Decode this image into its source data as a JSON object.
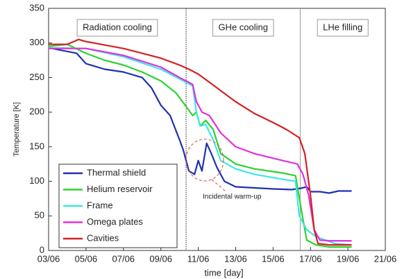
{
  "chart_data": {
    "type": "line",
    "xlabel": "time [day]",
    "ylabel": "Temperature [K]",
    "xlim": [
      3,
      21
    ],
    "xticks": [
      {
        "value": 3,
        "label": "03/06"
      },
      {
        "value": 5,
        "label": "05/06"
      },
      {
        "value": 7,
        "label": "07/06"
      },
      {
        "value": 9,
        "label": "09/06"
      },
      {
        "value": 11,
        "label": "11/06"
      },
      {
        "value": 13,
        "label": "13/06"
      },
      {
        "value": 15,
        "label": "15/06"
      },
      {
        "value": 17,
        "label": "17/06"
      },
      {
        "value": 19,
        "label": "19/06"
      },
      {
        "value": 21,
        "label": "21/06"
      }
    ],
    "ylim": [
      0,
      350
    ],
    "yticks": [
      0,
      50,
      100,
      150,
      200,
      250,
      300,
      350
    ],
    "phases": [
      "Radiation cooling",
      "GHe cooling",
      "LHe filling"
    ],
    "phase_boundaries": [
      10.35,
      16.45
    ],
    "annotation": "Incidental warm-up",
    "legend_position": "lower left",
    "series": [
      {
        "name": "Thermal shield",
        "color": "#1f2fb4",
        "x": [
          3,
          4.5,
          5,
          6,
          7,
          8,
          8.5,
          9,
          9.5,
          10,
          10.2,
          10.5,
          10.8,
          11,
          11.2,
          11.45,
          11.7,
          12,
          12.4,
          13,
          15,
          16,
          16.5,
          16.8,
          17,
          17.5,
          18,
          18.5,
          19.2
        ],
        "values": [
          293,
          285,
          270,
          262,
          258,
          250,
          235,
          210,
          195,
          160,
          145,
          115,
          110,
          130,
          115,
          155,
          140,
          120,
          100,
          92,
          89,
          88,
          90,
          92,
          85,
          85,
          83,
          86,
          86
        ]
      },
      {
        "name": "Helium reservoir",
        "color": "#2ed12e",
        "x": [
          3,
          4,
          5,
          6,
          7,
          8,
          9,
          9.8,
          10.3,
          10.7,
          10.9,
          11.1,
          11.4,
          11.8,
          12.2,
          13,
          14,
          15.5,
          16.2,
          16.5,
          16.8,
          17.3,
          18,
          19.2
        ],
        "values": [
          295,
          298,
          285,
          275,
          268,
          258,
          245,
          228,
          210,
          195,
          200,
          180,
          188,
          175,
          140,
          125,
          118,
          112,
          108,
          60,
          15,
          8,
          5,
          5
        ]
      },
      {
        "name": "Frame",
        "color": "#3ee6e6",
        "x": [
          3,
          5,
          7,
          9,
          10,
          10.7,
          10.9,
          11.1,
          11.4,
          11.8,
          12.2,
          13,
          14,
          15.5,
          16.2,
          16.4,
          16.8,
          17.3,
          17.8,
          18.3,
          19.2
        ],
        "values": [
          293,
          292,
          280,
          262,
          248,
          238,
          200,
          180,
          182,
          160,
          130,
          118,
          110,
          103,
          100,
          50,
          30,
          20,
          15,
          10,
          8
        ]
      },
      {
        "name": "Omega plates",
        "color": "#e030e0",
        "x": [
          3,
          5,
          7,
          9,
          10,
          10.7,
          10.9,
          11.2,
          11.6,
          12.2,
          13,
          14,
          15.5,
          16.3,
          16.6,
          16.9,
          17.2,
          17.5,
          18,
          19.2
        ],
        "values": [
          292,
          292,
          282,
          265,
          250,
          240,
          215,
          200,
          195,
          170,
          150,
          140,
          130,
          125,
          110,
          80,
          30,
          15,
          14,
          14
        ]
      },
      {
        "name": "Cavities",
        "color": "#d42020",
        "x": [
          3,
          4,
          4.6,
          5,
          6,
          7,
          8,
          9,
          10,
          10.5,
          11,
          12,
          13,
          14,
          15,
          15.5,
          15.7,
          16,
          16.4,
          16.7,
          17,
          17.2,
          17.4,
          18,
          19.2
        ],
        "values": [
          298,
          298,
          305,
          302,
          297,
          292,
          285,
          278,
          268,
          262,
          255,
          235,
          215,
          198,
          185,
          178,
          175,
          170,
          163,
          140,
          80,
          30,
          10,
          8,
          8
        ]
      }
    ]
  }
}
